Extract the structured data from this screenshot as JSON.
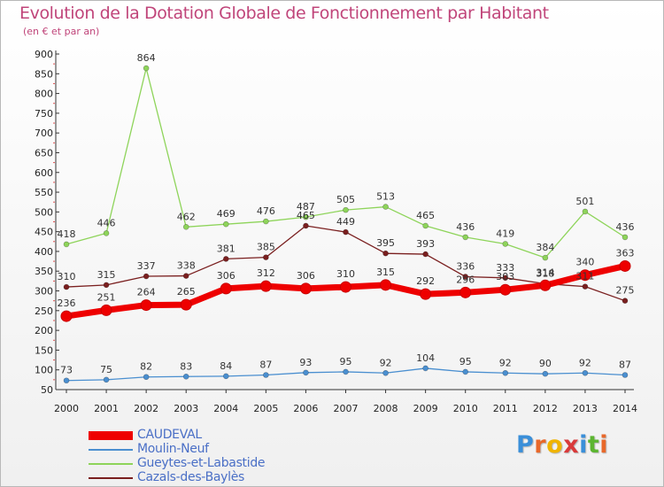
{
  "title": "Evolution de la Dotation Globale de Fonctionnement par Habitant",
  "subtitle": "(en € et par an)",
  "logo": {
    "text": "Proxiti",
    "colors": [
      "#3a8fd9",
      "#e8682a",
      "#f0b400",
      "#d93a3a",
      "#3a8fd9",
      "#5cb531",
      "#e8682a"
    ]
  },
  "chart_data": {
    "type": "line",
    "title": "Evolution de la Dotation Globale de Fonctionnement par Habitant",
    "subtitle": "(en € et par an)",
    "xlabel": "",
    "ylabel": "",
    "grid": false,
    "legend_position": "bottom-left",
    "x": [
      "2000",
      "2001",
      "2002",
      "2003",
      "2004",
      "2005",
      "2006",
      "2007",
      "2008",
      "2009",
      "2010",
      "2011",
      "2012",
      "2013",
      "2014"
    ],
    "ylim": [
      50,
      900
    ],
    "yticks": [
      50,
      100,
      150,
      200,
      250,
      300,
      350,
      400,
      450,
      500,
      550,
      600,
      650,
      700,
      750,
      800,
      850,
      900
    ],
    "series": [
      {
        "name": "CAUDEVAL",
        "color": "#ee0000",
        "values": [
          236,
          251,
          264,
          265,
          306,
          312,
          306,
          310,
          315,
          292,
          296,
          303,
          314,
          340,
          363
        ],
        "labels": [
          "236",
          "251",
          "264",
          "265",
          "306",
          "312",
          "306",
          "310",
          "315",
          "292",
          "296",
          "303",
          "314",
          "340",
          "363"
        ]
      },
      {
        "name": "Moulin-Neuf",
        "color": "#4a8fd0",
        "values": [
          73,
          75,
          82,
          83,
          84,
          87,
          93,
          95,
          92,
          104,
          95,
          92,
          90,
          92,
          87
        ],
        "labels": [
          "73",
          "75",
          "82",
          "83",
          "84",
          "87",
          "93",
          "95",
          "92",
          "104",
          "95",
          "92",
          "90",
          "92",
          "87"
        ]
      },
      {
        "name": "Gueytes-et-Labastide",
        "color": "#8ed45a",
        "values": [
          418,
          446,
          864,
          462,
          469,
          476,
          487,
          505,
          513,
          465,
          436,
          419,
          384,
          501,
          436
        ],
        "labels": [
          "418",
          "446",
          "864",
          "462",
          "469",
          "476",
          "487",
          "505",
          "513",
          "465",
          "436",
          "419",
          "384",
          "501",
          "436"
        ]
      },
      {
        "name": "Cazals-des-Baylès",
        "color": "#7a1f1f",
        "values": [
          310,
          315,
          337,
          338,
          381,
          385,
          465,
          449,
          395,
          393,
          336,
          333,
          318,
          311,
          275
        ],
        "labels": [
          "310",
          "315",
          "337",
          "338",
          "381",
          "385",
          "465",
          "449",
          "395",
          "393",
          "336",
          "333",
          "318",
          "311",
          "275"
        ]
      }
    ]
  }
}
